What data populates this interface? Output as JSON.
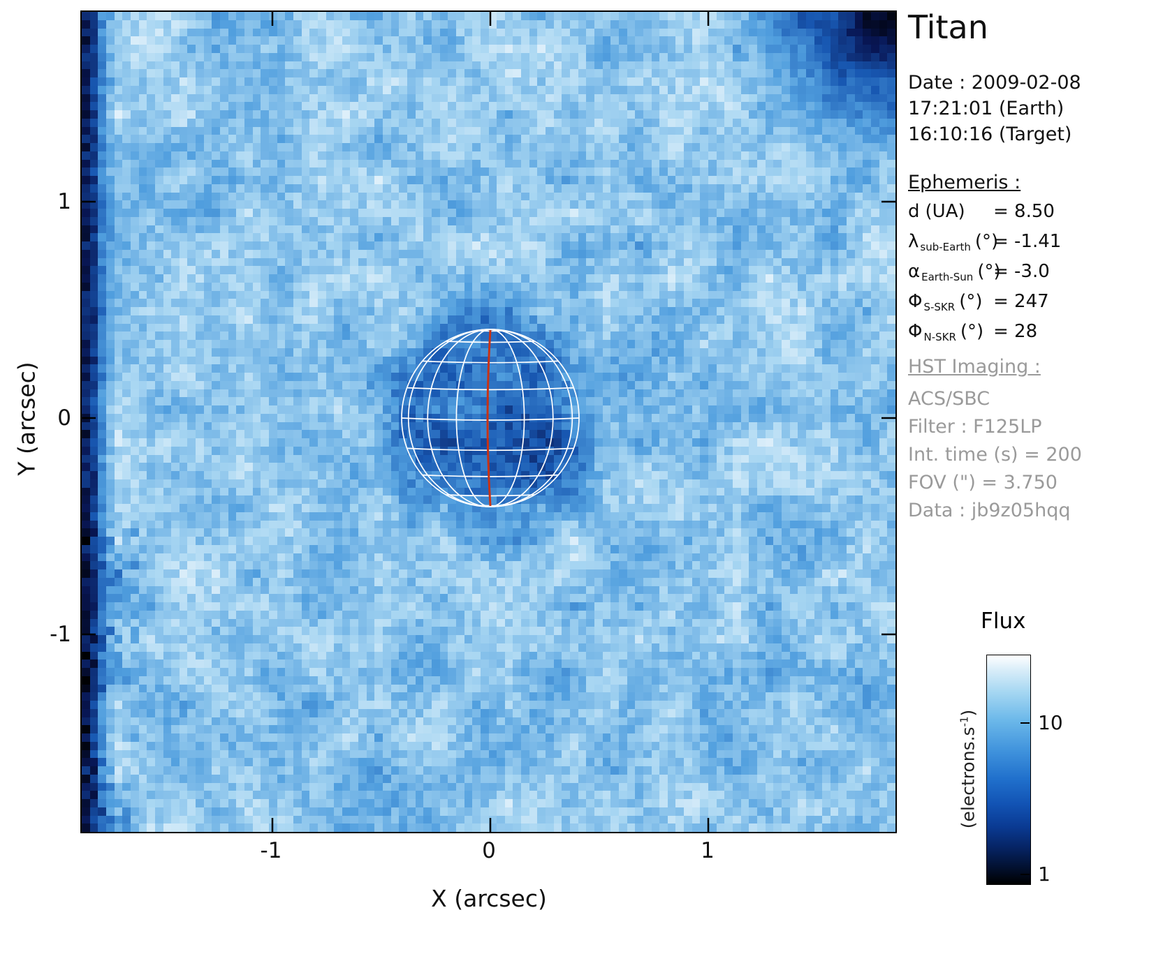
{
  "page": {
    "title": "Titan"
  },
  "plot": {
    "x_axis": {
      "label": "X (arcsec)",
      "ticks": [
        "-1",
        "0",
        "1"
      ]
    },
    "y_axis": {
      "label": "Y (arcsec)",
      "ticks": [
        "1",
        "0",
        "-1"
      ]
    }
  },
  "info_panel": {
    "title": "Titan",
    "date_line": "Date : 2009-02-08",
    "time_earth": "17:21:01 (Earth)",
    "time_target": "16:10:16 (Target)",
    "ephemeris_heading": "Ephemeris :",
    "ephemeris": [
      {
        "sym": "d",
        "sub": "",
        "unit": "(UA)",
        "value": "= 8.50"
      },
      {
        "sym": "λ",
        "sub": "sub-Earth",
        "unit": "(°)",
        "value": "= -1.41"
      },
      {
        "sym": "α",
        "sub": "Earth-Sun",
        "unit": "(°)",
        "value": "= -3.0"
      },
      {
        "sym": "Φ",
        "sub": "S-SKR",
        "unit": "(°)",
        "value": "= 247"
      },
      {
        "sym": "Φ",
        "sub": "N-SKR",
        "unit": "(°)",
        "value": "= 28"
      }
    ],
    "hst_heading": "HST Imaging :",
    "hst_lines": [
      "ACS/SBC",
      "Filter : F125LP",
      "Int. time (s) = 200",
      "FOV (\") = 3.750",
      "Data : jb9z05hqq"
    ]
  },
  "colorbar": {
    "title": "Flux",
    "unit_pre": "(electrons.s",
    "unit_sup": "-1",
    "unit_post": ")",
    "tick_upper": "10",
    "tick_lower": "1"
  },
  "colors": {
    "meridian_red": "#c83214",
    "wireframe_white": "#ffffff",
    "background_sky_blue": "#8ec5ec",
    "dark_navy": "#041030",
    "axis_black": "#000000",
    "secondary_gray": "#9a9a9a"
  },
  "chart_data": {
    "type": "heatmap",
    "title": "Titan",
    "xlabel": "X (arcsec)",
    "ylabel": "Y (arcsec)",
    "xlim": [
      -1.88,
      1.87
    ],
    "ylim": [
      -1.91,
      1.88
    ],
    "x_ticks": [
      -1,
      0,
      1
    ],
    "y_ticks": [
      1,
      0,
      -1
    ],
    "grid": false,
    "colorbar": {
      "label": "Flux (electrons.s-1)",
      "scale": "log",
      "tick_values": [
        10,
        1
      ],
      "min": 1,
      "max": 30,
      "colormap": "black -> dark blue -> blue -> light blue -> white"
    },
    "image_description": {
      "background_sky_flux_approx": 12,
      "titan_disk": {
        "center_arcsec": [
          0,
          0
        ],
        "radius_arcsec": 0.41,
        "flux_approx": 5,
        "darker_halo_radius_arcsec": 0.55
      },
      "dark_strip_left_edge_flux_approx": 1,
      "dark_region_top_right_flux_approx": 1,
      "overlay": "white orthographic latitude-longitude wireframe grid on Titan disk with red central meridian line"
    }
  }
}
